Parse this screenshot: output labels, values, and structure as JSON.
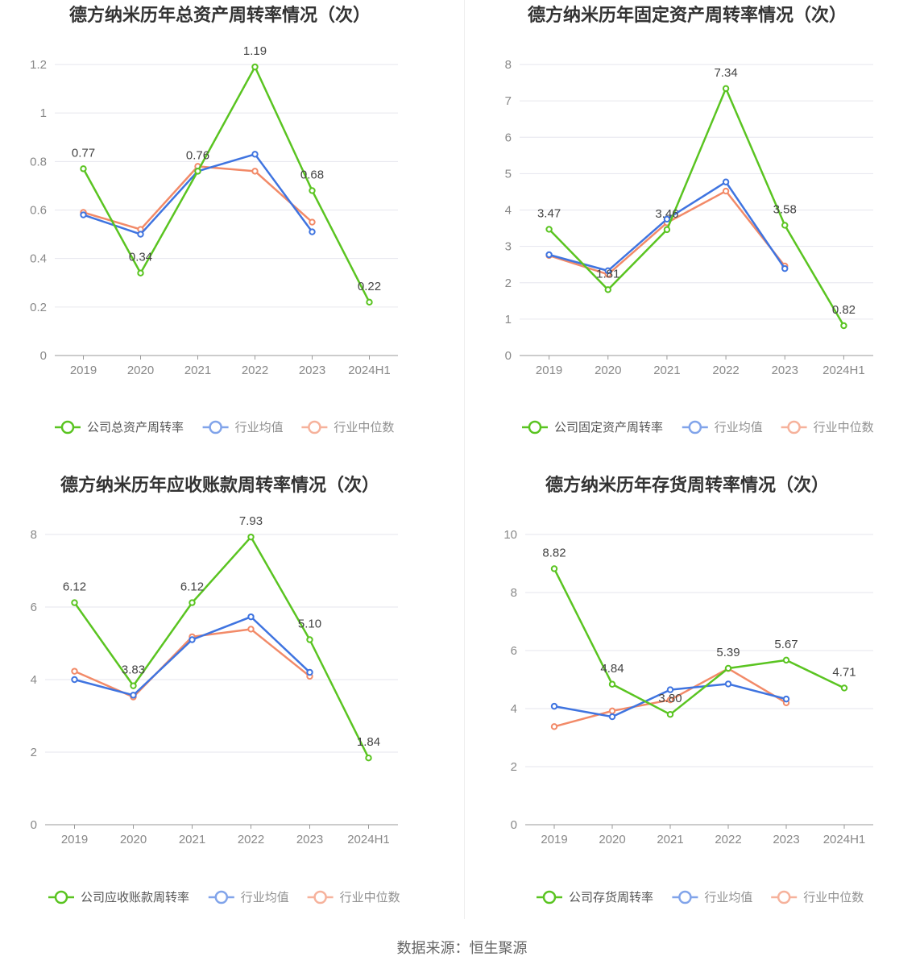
{
  "source_text": "数据来源：恒生聚源",
  "colors": {
    "company": "#5ac421",
    "avg": "#3f74e0",
    "median": "#f28a68",
    "grid": "#e6e6ee",
    "axis": "#999999"
  },
  "chart_data": [
    {
      "type": "line",
      "title": "德方纳米历年总资产周转率情况（次）",
      "categories": [
        "2019",
        "2020",
        "2021",
        "2022",
        "2023",
        "2024H1"
      ],
      "yticks": [
        "0",
        "0.2",
        "0.4",
        "0.6",
        "0.8",
        "1",
        "1.2"
      ],
      "ylim": [
        0,
        1.2
      ],
      "series": [
        {
          "name": "公司总资产周转率",
          "values": [
            0.77,
            0.34,
            0.76,
            1.19,
            0.68,
            0.22
          ],
          "labels": [
            "0.77",
            "0.34",
            "0.76",
            "1.19",
            "0.68",
            "0.22"
          ]
        },
        {
          "name": "行业均值",
          "values": [
            0.58,
            0.5,
            0.76,
            0.83,
            0.51,
            null
          ]
        },
        {
          "name": "行业中位数",
          "values": [
            0.59,
            0.52,
            0.78,
            0.76,
            0.55,
            null
          ]
        }
      ]
    },
    {
      "type": "line",
      "title": "德方纳米历年固定资产周转率情况（次）",
      "categories": [
        "2019",
        "2020",
        "2021",
        "2022",
        "2023",
        "2024H1"
      ],
      "yticks": [
        "0",
        "1",
        "2",
        "3",
        "4",
        "5",
        "6",
        "7",
        "8"
      ],
      "ylim": [
        0,
        8
      ],
      "series": [
        {
          "name": "公司固定资产周转率",
          "values": [
            3.47,
            1.81,
            3.46,
            7.34,
            3.58,
            0.82
          ],
          "labels": [
            "3.47",
            "1.81",
            "3.46",
            "7.34",
            "3.58",
            "0.82"
          ]
        },
        {
          "name": "行业均值",
          "values": [
            2.77,
            2.33,
            3.75,
            4.77,
            2.39,
            null
          ]
        },
        {
          "name": "行业中位数",
          "values": [
            2.75,
            2.23,
            3.65,
            4.52,
            2.46,
            null
          ]
        }
      ]
    },
    {
      "type": "line",
      "title": "德方纳米历年应收账款周转率情况（次）",
      "categories": [
        "2019",
        "2020",
        "2021",
        "2022",
        "2023",
        "2024H1"
      ],
      "yticks": [
        "0",
        "2",
        "4",
        "6",
        "8"
      ],
      "ylim": [
        0,
        8
      ],
      "series": [
        {
          "name": "公司应收账款周转率",
          "values": [
            6.12,
            3.83,
            6.12,
            7.93,
            5.1,
            1.84
          ],
          "labels": [
            "6.12",
            "3.83",
            "6.12",
            "7.93",
            "5.10",
            "1.84"
          ]
        },
        {
          "name": "行业均值",
          "values": [
            4.0,
            3.57,
            5.1,
            5.73,
            4.2,
            null
          ]
        },
        {
          "name": "行业中位数",
          "values": [
            4.23,
            3.52,
            5.18,
            5.39,
            4.09,
            null
          ]
        }
      ]
    },
    {
      "type": "line",
      "title": "德方纳米历年存货周转率情况（次）",
      "categories": [
        "2019",
        "2020",
        "2021",
        "2022",
        "2023",
        "2024H1"
      ],
      "yticks": [
        "0",
        "2",
        "4",
        "6",
        "8",
        "10"
      ],
      "ylim": [
        0,
        10
      ],
      "series": [
        {
          "name": "公司存货周转率",
          "values": [
            8.82,
            4.84,
            3.8,
            5.39,
            5.67,
            4.71
          ],
          "labels": [
            "8.82",
            "4.84",
            "3.80",
            "5.39",
            "5.67",
            "4.71"
          ]
        },
        {
          "name": "行业均值",
          "values": [
            4.08,
            3.72,
            4.65,
            4.85,
            4.33,
            null
          ]
        },
        {
          "name": "行业中位数",
          "values": [
            3.38,
            3.92,
            4.3,
            5.38,
            4.2,
            null
          ]
        }
      ]
    }
  ]
}
